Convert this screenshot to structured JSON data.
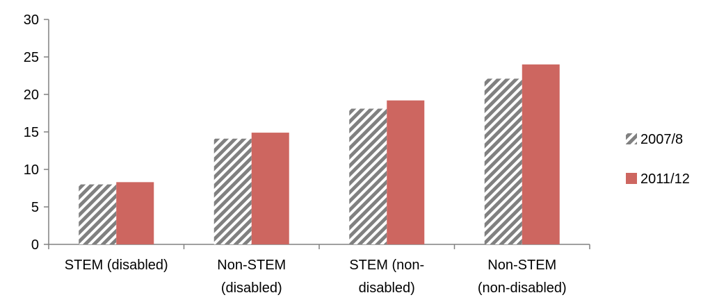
{
  "chart_data": {
    "type": "bar",
    "categories": [
      [
        "STEM (disabled)"
      ],
      [
        "Non-STEM",
        "(disabled)"
      ],
      [
        "STEM (non-",
        "disabled)"
      ],
      [
        "Non-STEM",
        "(non-disabled)"
      ]
    ],
    "series": [
      {
        "name": "2007/8",
        "values": [
          8,
          14.1,
          18.1,
          22.1
        ],
        "pattern": "diagonal-hatch",
        "color": "#808080"
      },
      {
        "name": "2011/12",
        "values": [
          8.3,
          14.9,
          19.2,
          24
        ],
        "color": "#cd6660"
      }
    ],
    "ylim": [
      0,
      30
    ],
    "yticks": [
      0,
      5,
      10,
      15,
      20,
      25,
      30
    ],
    "grid": false,
    "legend": "right",
    "axis_color": "#808080"
  }
}
